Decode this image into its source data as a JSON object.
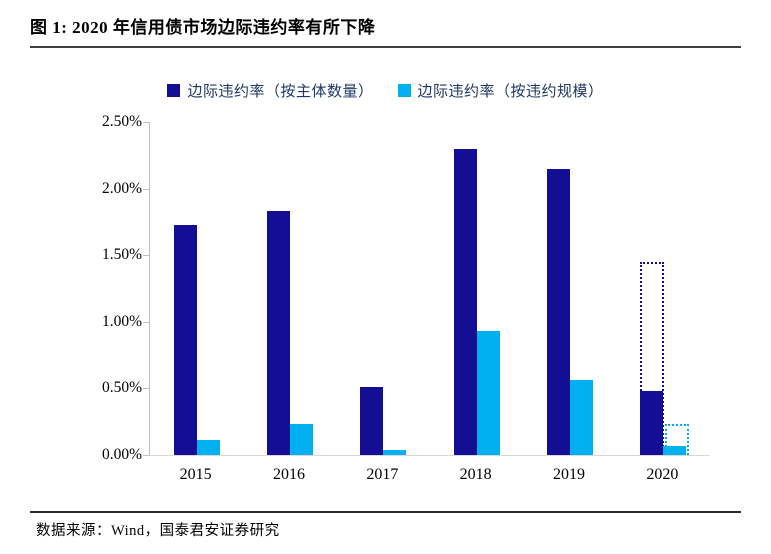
{
  "header": {
    "title": "图 1:  2020 年信用债市场边际违约率有所下降"
  },
  "legend": {
    "items": [
      {
        "label": "边际违约率（按主体数量）",
        "color": "#130e93"
      },
      {
        "label": "边际违约率（按违约规模）",
        "color": "#00b0f0"
      }
    ]
  },
  "chart_data": {
    "type": "bar",
    "title": "2020 年信用债市场边际违约率有所下降",
    "categories": [
      "2015",
      "2016",
      "2017",
      "2018",
      "2019",
      "2020"
    ],
    "series": [
      {
        "name": "边际违约率（按主体数量）",
        "color": "#130e93",
        "values": [
          1.73,
          1.83,
          0.51,
          2.3,
          2.15,
          0.48
        ]
      },
      {
        "name": "边际违约率（按违约规模）",
        "color": "#00b0f0",
        "values": [
          0.11,
          0.23,
          0.04,
          0.93,
          0.56,
          0.07
        ]
      }
    ],
    "overlays": [
      {
        "category": "2020",
        "series": "边际违约率（按主体数量）",
        "value": 1.45,
        "style": "dotted-outline",
        "color": "#130e93"
      },
      {
        "category": "2020",
        "series": "边际违约率（按违约规模）",
        "value": 0.23,
        "style": "dotted-outline",
        "color": "#00b0f0"
      }
    ],
    "y_ticks": [
      "2.50%",
      "2.00%",
      "1.50%",
      "1.00%",
      "0.50%",
      "0.00%"
    ],
    "ylim": [
      0,
      2.5
    ],
    "grid": false,
    "legend_position": "top",
    "axis_color": "#bfbfbf",
    "baseline_color": "#d9d9d9"
  },
  "footer": {
    "source": "数据来源：Wind，国泰君安证券研究"
  }
}
